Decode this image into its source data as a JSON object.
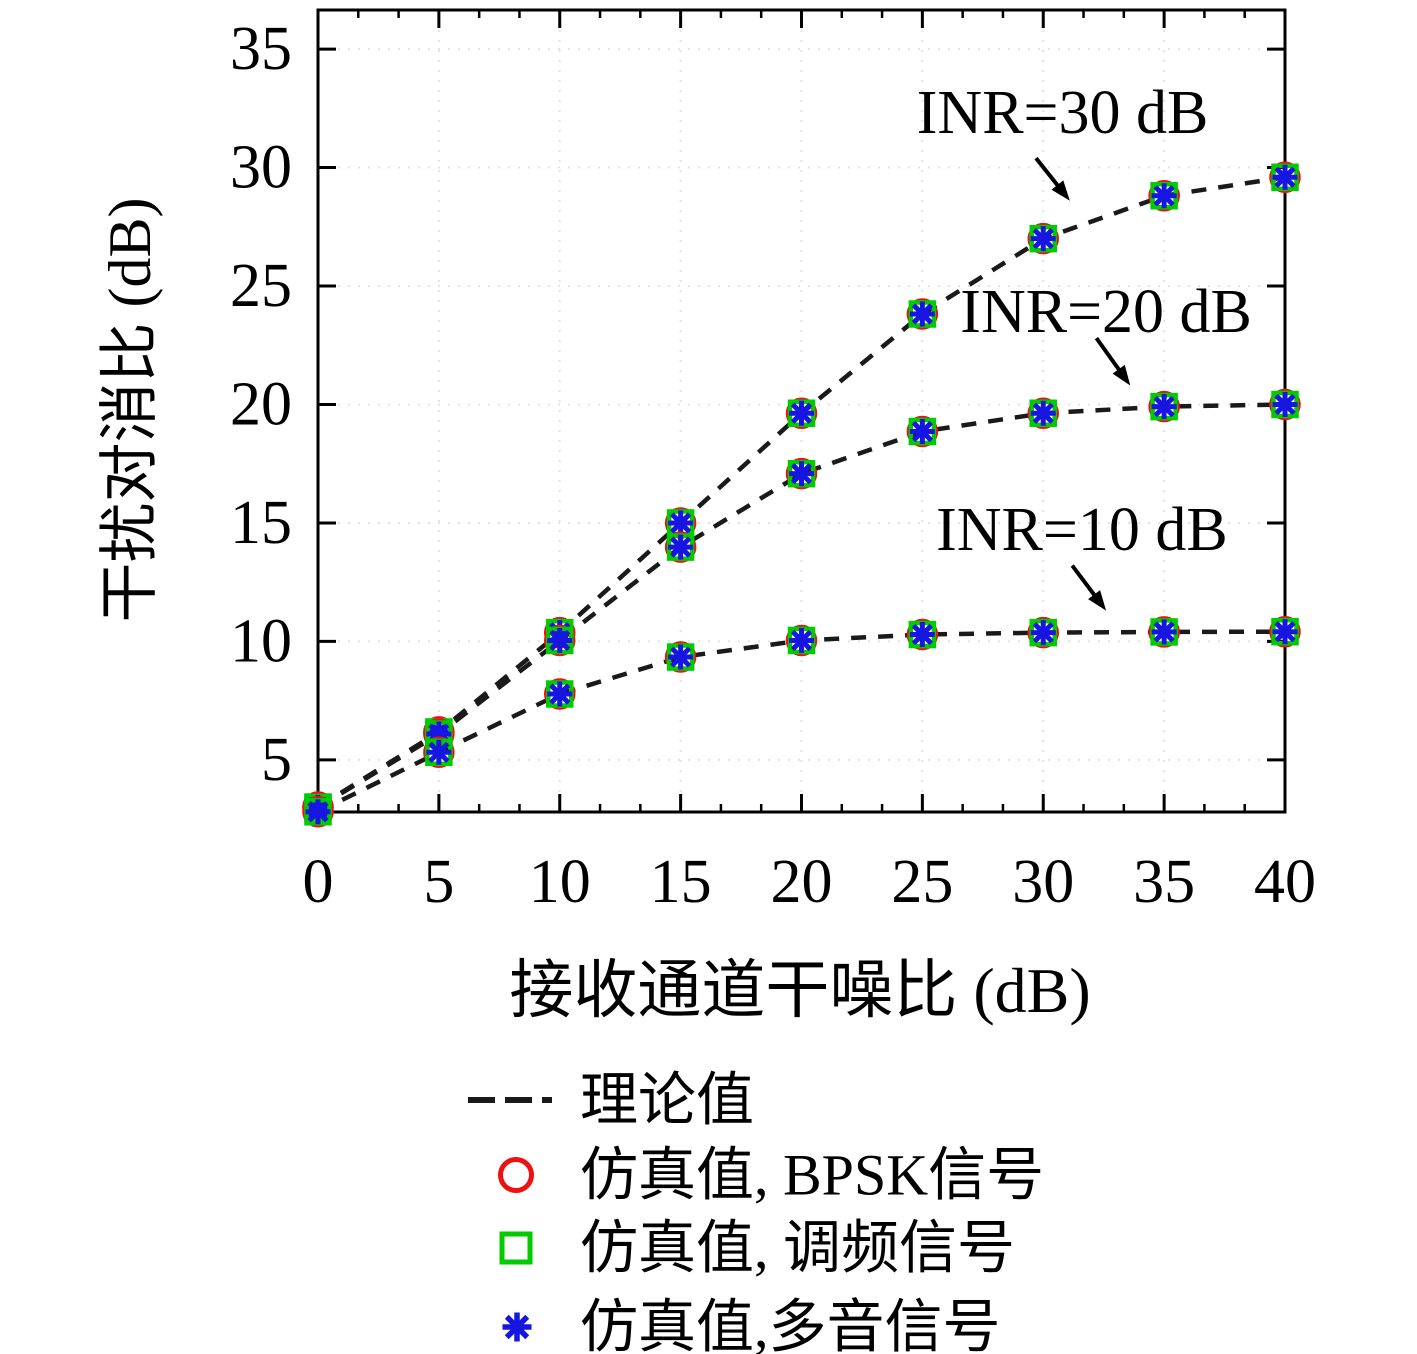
{
  "chart_data": {
    "type": "line",
    "title": "",
    "xlabel": "接收通道干噪比 (dB)",
    "ylabel": "干扰对消比 (dB)",
    "xlim": [
      0,
      40
    ],
    "ylim": [
      2.8,
      36.65
    ],
    "xticks": [
      "0",
      "5",
      "10",
      "15",
      "20",
      "25",
      "30",
      "35",
      "40"
    ],
    "yticks": [
      "5",
      "10",
      "15",
      "20",
      "25",
      "30",
      "35"
    ],
    "xtick_values": [
      0,
      5,
      10,
      15,
      20,
      25,
      30,
      35,
      40
    ],
    "ytick_values": [
      5,
      10,
      15,
      20,
      25,
      30,
      35
    ],
    "x_minor_divisions": 3,
    "grid": "faint dotted",
    "x": [
      0,
      5,
      10,
      15,
      20,
      25,
      30,
      35,
      40
    ],
    "series": [
      {
        "name": "INR=30 dB",
        "values": [
          3.01,
          6.18,
          10.37,
          15.0,
          19.63,
          23.82,
          27.0,
          28.81,
          29.59
        ]
      },
      {
        "name": "INR=20 dB",
        "values": [
          2.99,
          6.09,
          10.04,
          13.98,
          17.08,
          18.86,
          19.63,
          19.91,
          20.0
        ]
      },
      {
        "name": "INR=10 dB",
        "values": [
          2.81,
          5.32,
          7.78,
          9.34,
          10.04,
          10.29,
          10.37,
          10.4,
          10.41
        ]
      }
    ],
    "marker_overlay_note": "every data point carries three overlaid simulation markers: red circle, green square, blue asterisk, on a black dashed theoretical curve",
    "annotations": [
      {
        "text": "INR=30 dB",
        "x": 30.8,
        "y": 32.3,
        "arrow_from": [
          29.7,
          30.4
        ],
        "arrow_to": [
          31.1,
          28.6
        ]
      },
      {
        "text": "INR=20 dB",
        "x": 32.6,
        "y": 23.9,
        "arrow_from": [
          32.2,
          22.8
        ],
        "arrow_to": [
          33.6,
          20.8
        ]
      },
      {
        "text": "INR=10 dB",
        "x": 31.6,
        "y": 14.7,
        "arrow_from": [
          31.2,
          13.2
        ],
        "arrow_to": [
          32.6,
          11.3
        ]
      }
    ],
    "legend": [
      {
        "type": "dashed-line",
        "label": "理论值"
      },
      {
        "type": "circle",
        "label": "仿真值, BPSK信号"
      },
      {
        "type": "square",
        "label": "仿真值, 调频信号"
      },
      {
        "type": "asterisk",
        "label": "仿真值,多音信号"
      }
    ],
    "legend_position": "below plot, left-aligned column",
    "colors": {
      "theory_line": "#1a1a1a",
      "bpsk_circle": "#ee1111",
      "fm_square": "#00cc00",
      "multitone_asterisk": "#1616e0",
      "axis": "#000000",
      "grid": "#e3e3e3"
    }
  }
}
